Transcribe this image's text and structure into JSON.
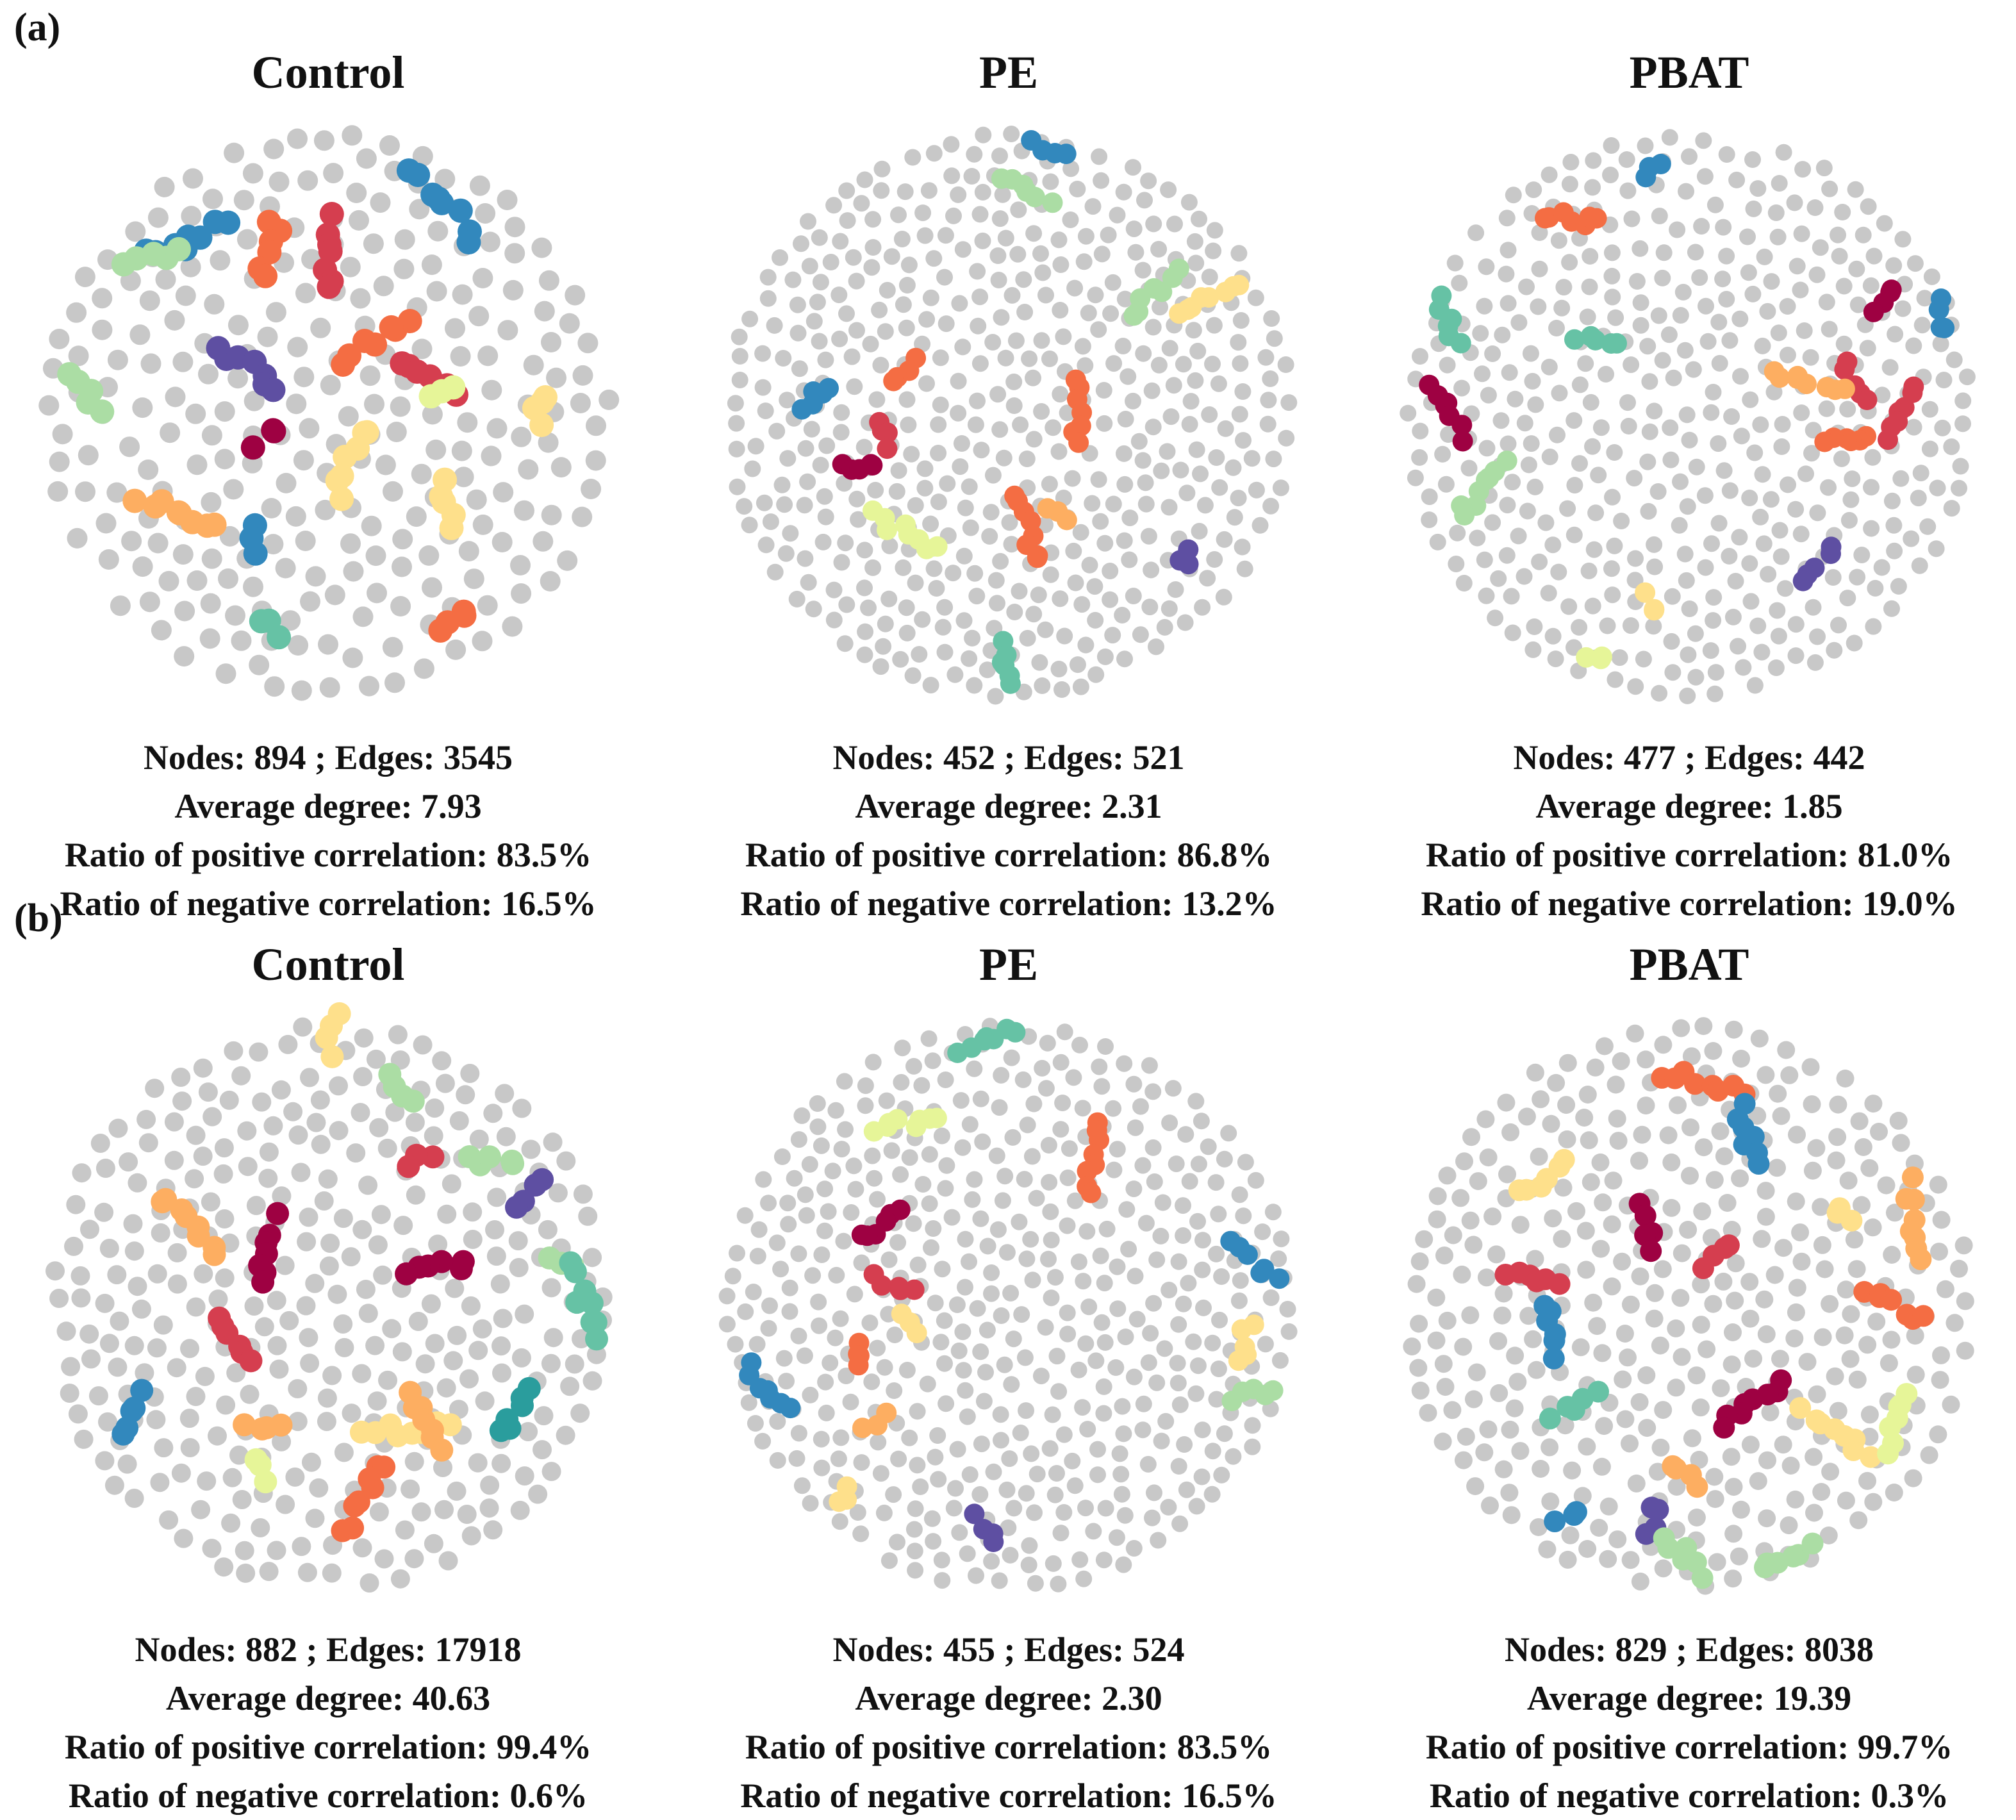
{
  "panels": [
    {
      "label": "(a)",
      "networks": [
        {
          "title": "Control",
          "nodes": "894",
          "edges": "3545",
          "average_degree": "7.93",
          "positive": "83.5%",
          "negative": "16.5%"
        },
        {
          "title": "PE",
          "nodes": "452",
          "edges": "521",
          "average_degree": "2.31",
          "positive": "86.8%",
          "negative": "13.2%"
        },
        {
          "title": "PBAT",
          "nodes": "477",
          "edges": "442",
          "average_degree": "1.85",
          "positive": "81.0%",
          "negative": "19.0%"
        }
      ]
    },
    {
      "label": "(b)",
      "networks": [
        {
          "title": "Control",
          "nodes": "882",
          "edges": "17918",
          "average_degree": "40.63",
          "positive": "99.4%",
          "negative": "0.6%"
        },
        {
          "title": "PE",
          "nodes": "455",
          "edges": "524",
          "average_degree": "2.30",
          "positive": "83.5%",
          "negative": "16.5%"
        },
        {
          "title": "PBAT",
          "nodes": "829",
          "edges": "8038",
          "average_degree": "19.39",
          "positive": "99.7%",
          "negative": "0.3%"
        }
      ]
    }
  ],
  "strings": {
    "nodes_label": "Nodes:",
    "edges_label": "Edges:",
    "separator": ";",
    "average_degree_label": "Average degree:",
    "positive_label": "Ratio of positive correlation:",
    "negative_label": "Ratio of negative correlation:"
  },
  "colors": {
    "node_default": "#c8c8c8",
    "module_palette": [
      "#9e0142",
      "#d53e4f",
      "#f46d43",
      "#fdae61",
      "#fee08b",
      "#e6f598",
      "#abdda4",
      "#66c2a5",
      "#3288bd",
      "#5e4fa2",
      "#2a9d9d"
    ]
  }
}
